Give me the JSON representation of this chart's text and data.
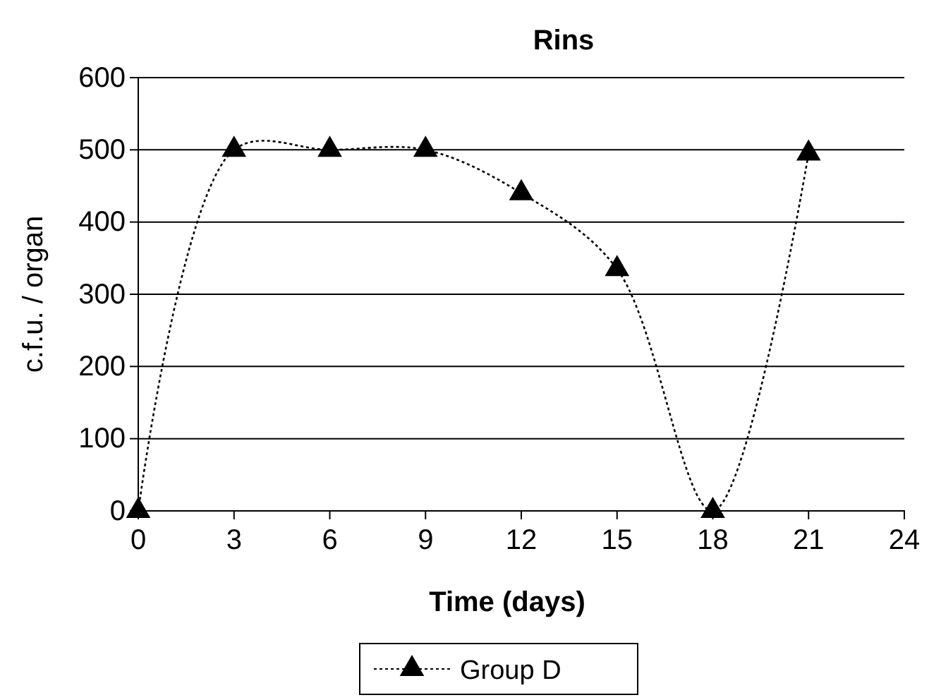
{
  "chart_data": {
    "type": "line",
    "title": "Rins",
    "xlabel": "Time (days)",
    "ylabel": "c.f.u. / organ",
    "x": [
      0,
      3,
      6,
      9,
      12,
      15,
      18,
      21
    ],
    "series": [
      {
        "name": "Group D",
        "color": "#000000",
        "values": [
          0,
          500,
          500,
          500,
          440,
          335,
          0,
          495
        ]
      }
    ],
    "xlim": [
      0,
      24
    ],
    "xticks": [
      0,
      3,
      6,
      9,
      12,
      15,
      18,
      21,
      24
    ],
    "ylim": [
      0,
      600
    ],
    "yticks": [
      0,
      100,
      200,
      300,
      400,
      500,
      600
    ],
    "grid": "y",
    "legend": "bottom",
    "marker": "triangle",
    "line_style": "dotted"
  }
}
